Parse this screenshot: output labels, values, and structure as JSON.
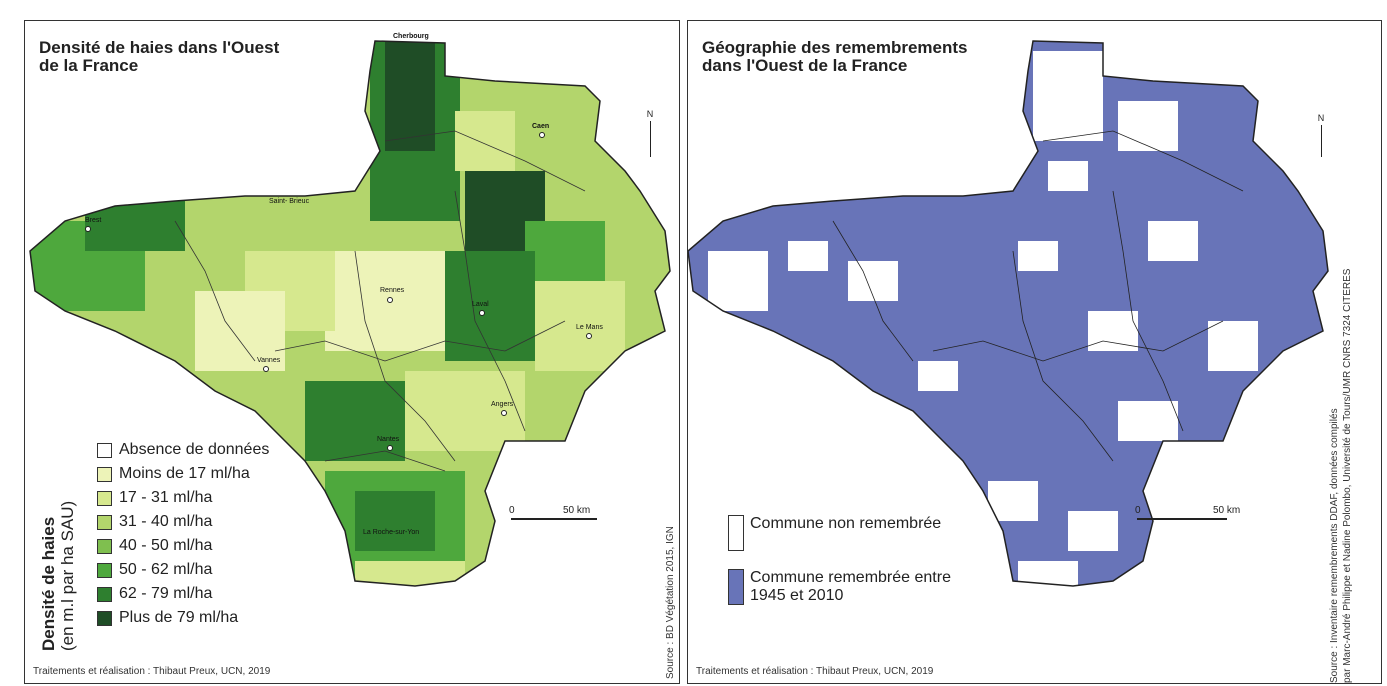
{
  "left_panel": {
    "title_line1": "Densité de haies dans l'Ouest",
    "title_line2": "de la France",
    "legend_title": "Densité de haies",
    "legend_subtitle": "(en m.l par ha SAU)",
    "legend": [
      {
        "label": "Absence de données",
        "color": "#ffffff"
      },
      {
        "label": "Moins de 17 ml/ha",
        "color": "#edf3b8"
      },
      {
        "label": "17 - 31 ml/ha",
        "color": "#d6e88e"
      },
      {
        "label": "31 - 40 ml/ha",
        "color": "#b3d56c"
      },
      {
        "label": "40 - 50 ml/ha",
        "color": "#7fbf4f"
      },
      {
        "label": "50 - 62 ml/ha",
        "color": "#4ea83d"
      },
      {
        "label": "62 - 79 ml/ha",
        "color": "#2e7f2f"
      },
      {
        "label": "Plus de 79 ml/ha",
        "color": "#1f4d26"
      }
    ],
    "cities": [
      {
        "name": "Cherbourg"
      },
      {
        "name": "Caen"
      },
      {
        "name": "Brest"
      },
      {
        "name": "Saint- Brieuc"
      },
      {
        "name": "Rennes"
      },
      {
        "name": "Laval"
      },
      {
        "name": "Le Mans"
      },
      {
        "name": "Vannes"
      },
      {
        "name": "Angers"
      },
      {
        "name": "Nantes"
      },
      {
        "name": "La Roche-sur-Yon"
      }
    ],
    "north": "N",
    "scale_start": "0",
    "scale_end": "50 km",
    "source": "Source : BD Végétation 2015, IGN",
    "credit": "Traitements et réalisation : Thibaut Preux, UCN, 2019"
  },
  "right_panel": {
    "title_line1": "Géographie des remembrements",
    "title_line2": "dans l'Ouest de la France",
    "legend": [
      {
        "label": "Commune non remembrée",
        "color": "#ffffff"
      },
      {
        "label": "Commune remembrée entre 1945 et 2010",
        "color": "#6874b8"
      }
    ],
    "north": "N",
    "scale_start": "0",
    "scale_end": "50 km",
    "source_line1": "Source : Inventaire remembrements DDAF, données compilés",
    "source_line2": "par Marc-André Philippe et Nadine Polombo, Université de Tours/UMR CNRS 7324 CITERES",
    "credit": "Traitements et réalisation : Thibaut Preux, UCN, 2019"
  }
}
